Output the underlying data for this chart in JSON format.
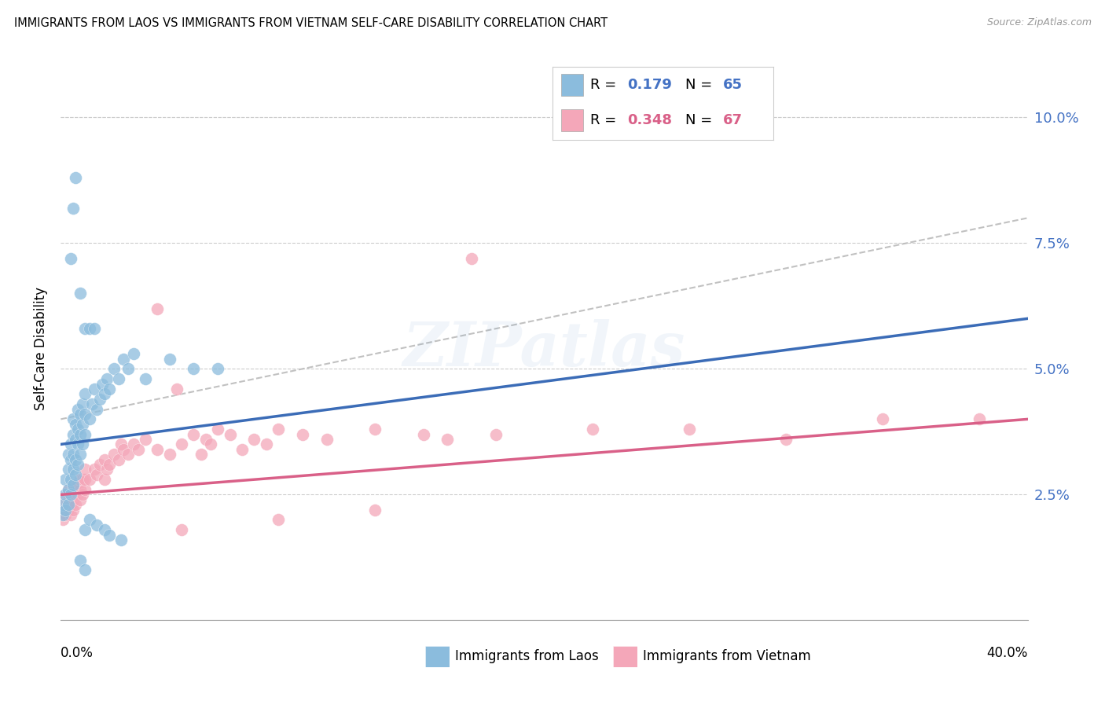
{
  "title": "IMMIGRANTS FROM LAOS VS IMMIGRANTS FROM VIETNAM SELF-CARE DISABILITY CORRELATION CHART",
  "source": "Source: ZipAtlas.com",
  "ylabel": "Self-Care Disability",
  "R1": "0.179",
  "N1": "65",
  "R2": "0.348",
  "N2": "67",
  "color_laos": "#8BBCDD",
  "color_vietnam": "#F4A7B9",
  "color_laos_line": "#3B6CB7",
  "color_vietnam_line": "#D96088",
  "color_dashed": "#BBBBBB",
  "color_grid": "#CCCCCC",
  "background_color": "#ffffff",
  "title_fontsize": 10.5,
  "source_fontsize": 9,
  "legend_label1": "Immigrants from Laos",
  "legend_label2": "Immigrants from Vietnam",
  "x_min": 0.0,
  "x_max": 0.4,
  "y_min": 0.0,
  "y_max": 0.108,
  "y_ticks": [
    0.025,
    0.05,
    0.075,
    0.1
  ],
  "y_tick_labels": [
    "2.5%",
    "5.0%",
    "7.5%",
    "10.0%"
  ],
  "laos_line_start": 0.035,
  "laos_line_end": 0.06,
  "viet_line_start": 0.025,
  "viet_line_end": 0.04,
  "dashed_line_start": 0.04,
  "dashed_line_end": 0.08
}
